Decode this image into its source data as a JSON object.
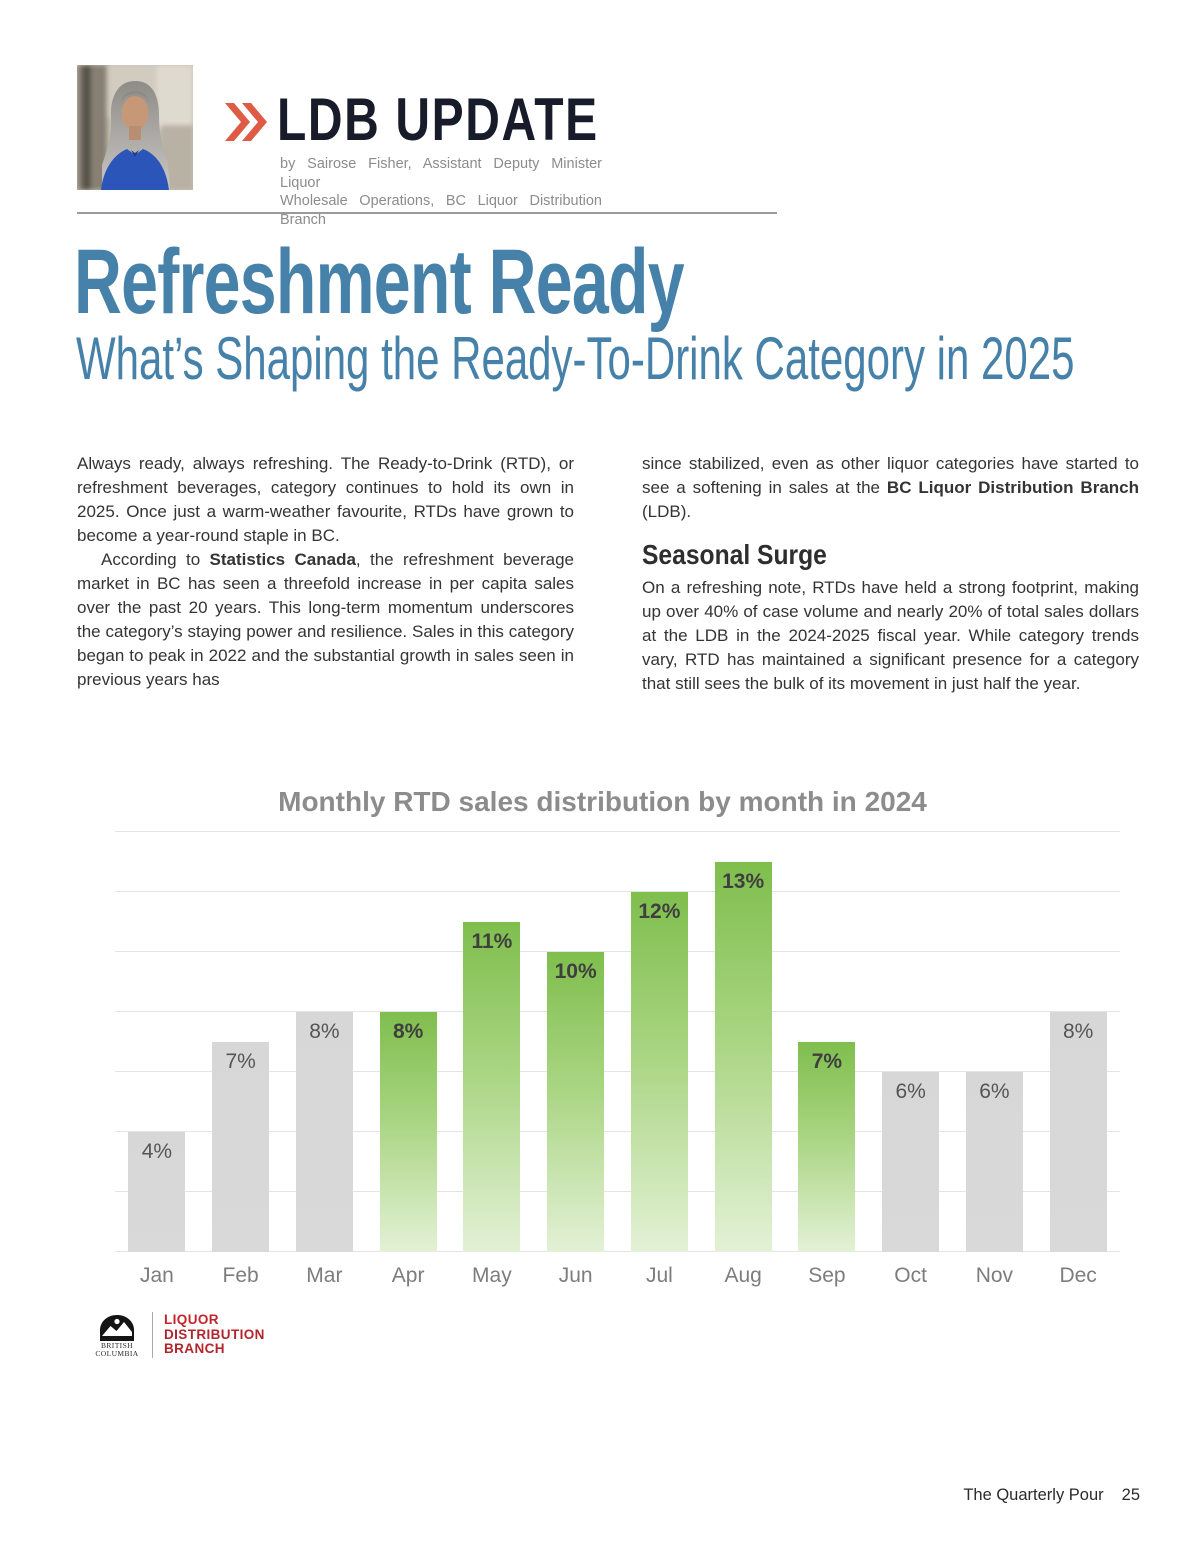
{
  "header": {
    "title": "LDB UPDATE",
    "byline_line1": "by Sairose Fisher, Assistant Deputy Minister Liquor",
    "byline_line2": "Wholesale Operations, BC Liquor Distribution Branch",
    "accent_color": "#DE5B45",
    "title_color": "#181C2A",
    "photo_alt": "portrait-of-author"
  },
  "article": {
    "title": "Refreshment Ready",
    "subtitle": "What’s Shaping the Ready-To-Drink Category in 2025",
    "title_color": "#4581A9",
    "left_column": {
      "p1": "Always ready, always refreshing. The Ready-to-Drink (RTD), or refreshment beverages, category continues to hold its own in 2025. Once just a warm-weather favourite, RTDs have grown to become a year-round staple in BC.",
      "p2_pre": "According to ",
      "p2_bold": "Statistics Canada",
      "p2_post": ", the refreshment beverage market in BC has seen a threefold increase in per capita sales over the past 20 years. This long-term momentum underscores the category’s staying power and resilience. Sales in this category began to peak in 2022 and the substantial growth in sales seen in previous years has"
    },
    "right_column": {
      "p1_pre": "since stabilized, even as other liquor categories have started to see a softening in sales at the ",
      "p1_bold": "BC Liquor Distribution Branch",
      "p1_post": " (LDB).",
      "heading": "Seasonal Surge",
      "p2": "On a refreshing note, RTDs have held a strong footprint, making up over 40% of case volume and nearly 20% of total sales dollars at the LDB in the 2024-2025 fiscal year. While category trends vary, RTD has maintained a significant presence for a category that still sees the bulk of its movement in just half the year."
    }
  },
  "chart_data": {
    "type": "bar",
    "title": "Monthly RTD sales distribution by month in 2024",
    "categories": [
      "Jan",
      "Feb",
      "Mar",
      "Apr",
      "May",
      "Jun",
      "Jul",
      "Aug",
      "Sep",
      "Oct",
      "Nov",
      "Dec"
    ],
    "values": [
      4,
      7,
      8,
      8,
      11,
      10,
      12,
      13,
      7,
      6,
      6,
      8
    ],
    "unit": "%",
    "highlighted": [
      false,
      false,
      false,
      true,
      true,
      true,
      true,
      true,
      true,
      false,
      false,
      false
    ],
    "xlabel": "",
    "ylabel": "",
    "ylim": [
      0,
      14
    ],
    "gridline_step": 2,
    "grid": true,
    "legend": "none",
    "colors": {
      "highlight_top": "#7FBE4D",
      "highlight_bottom": "#E3F1D6",
      "default_bar": "#D9D9D9",
      "gridline": "#E4E4E4",
      "title": "#8C8C8C",
      "axis_label": "#7D7D7D",
      "value_label": "#3F3F3F"
    }
  },
  "logo": {
    "org_line1": "British",
    "org_line2": "Columbia",
    "unit_line1": "LIQUOR",
    "unit_line2": "DISTRIBUTION",
    "unit_line3": "BRANCH",
    "color": "#B1252C"
  },
  "footer": {
    "magazine": "The Quarterly Pour",
    "page_number": "25"
  }
}
